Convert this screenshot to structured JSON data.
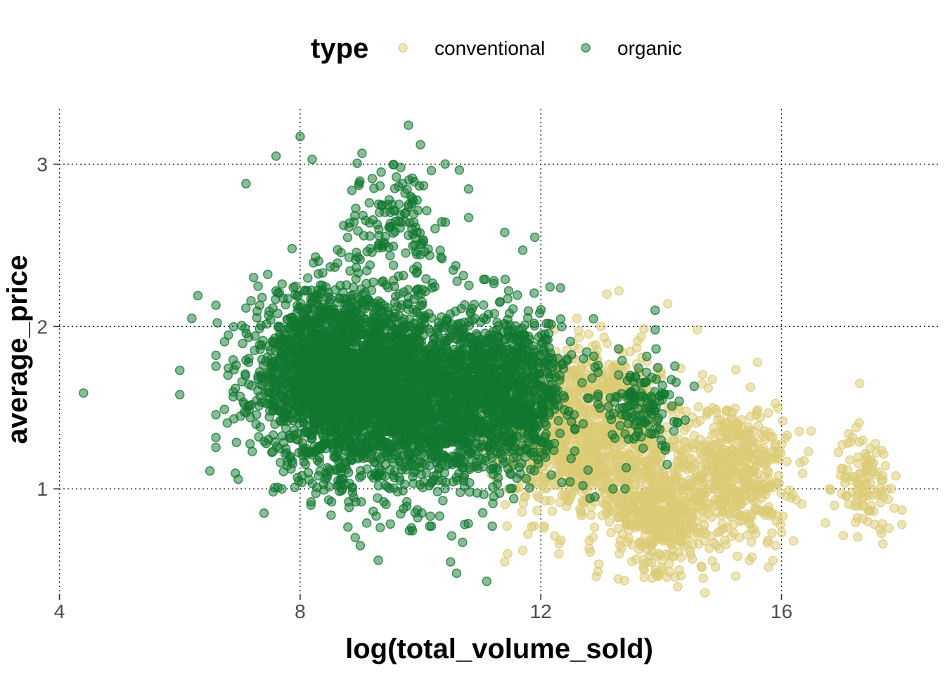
{
  "chart_data": {
    "type": "scatter",
    "title": "",
    "xlabel": "log(total_volume_sold)",
    "ylabel": "average_price",
    "xlim": [
      3.9,
      18.6
    ],
    "ylim": [
      0.36,
      3.34
    ],
    "x_ticks": [
      4,
      8,
      12,
      16
    ],
    "y_ticks": [
      1,
      2,
      3
    ],
    "grid": true,
    "legend": {
      "title": "type",
      "position": "top",
      "entries": [
        {
          "name": "conventional",
          "color": "#dccb75"
        },
        {
          "name": "organic",
          "color": "#12772f"
        }
      ]
    },
    "point_opacity": 0.5,
    "series": [
      {
        "name": "conventional",
        "color": "#dccb75",
        "clusters": [
          {
            "x_center": 12.3,
            "x_spread": 0.55,
            "y_center": 1.35,
            "y_spread": 0.25,
            "count": 520
          },
          {
            "x_center": 13.2,
            "x_spread": 0.55,
            "y_center": 1.3,
            "y_spread": 0.28,
            "count": 650
          },
          {
            "x_center": 14.0,
            "x_spread": 0.35,
            "y_center": 0.85,
            "y_spread": 0.17,
            "count": 420
          },
          {
            "x_center": 15.2,
            "x_spread": 0.45,
            "y_center": 1.1,
            "y_spread": 0.22,
            "count": 520
          },
          {
            "x_center": 17.4,
            "x_spread": 0.25,
            "y_center": 1.05,
            "y_spread": 0.15,
            "count": 110
          }
        ],
        "extra_points": [
          [
            13.1,
            2.2
          ],
          [
            13.3,
            2.22
          ],
          [
            12.6,
            2.05
          ],
          [
            14.6,
            1.98
          ],
          [
            13.0,
            2.0
          ],
          [
            17.3,
            1.65
          ],
          [
            15.5,
            0.75
          ],
          [
            15.9,
            0.65
          ],
          [
            14.7,
            0.45
          ],
          [
            18.0,
            0.78
          ],
          [
            18.0,
            0.87
          ],
          [
            11.4,
            0.55
          ],
          [
            11.7,
            0.62
          ],
          [
            12.3,
            0.6
          ],
          [
            14.3,
            0.5
          ],
          [
            13.9,
            0.48
          ],
          [
            15.3,
            0.7
          ],
          [
            16.2,
            0.68
          ],
          [
            14.0,
            1.72
          ],
          [
            15.6,
            1.78
          ],
          [
            16.8,
            1.0
          ],
          [
            17.9,
            1.08
          ]
        ]
      },
      {
        "name": "organic",
        "color": "#12772f",
        "clusters": [
          {
            "x_center": 8.4,
            "x_spread": 0.6,
            "y_center": 1.7,
            "y_spread": 0.26,
            "count": 1500
          },
          {
            "x_center": 9.4,
            "x_spread": 0.7,
            "y_center": 1.6,
            "y_spread": 0.3,
            "count": 1500
          },
          {
            "x_center": 10.6,
            "x_spread": 0.6,
            "y_center": 1.55,
            "y_spread": 0.26,
            "count": 900
          },
          {
            "x_center": 11.6,
            "x_spread": 0.45,
            "y_center": 1.6,
            "y_spread": 0.23,
            "count": 650
          },
          {
            "x_center": 9.6,
            "x_spread": 0.4,
            "y_center": 2.65,
            "y_spread": 0.18,
            "count": 130
          },
          {
            "x_center": 13.7,
            "x_spread": 0.3,
            "y_center": 1.55,
            "y_spread": 0.14,
            "count": 130
          }
        ],
        "extra_points": [
          [
            4.4,
            1.59
          ],
          [
            9.8,
            3.24
          ],
          [
            10.0,
            3.12
          ],
          [
            8.0,
            3.17
          ],
          [
            7.6,
            3.05
          ],
          [
            8.2,
            3.03
          ],
          [
            6.5,
            1.11
          ],
          [
            6.2,
            2.05
          ],
          [
            6.0,
            1.73
          ],
          [
            6.0,
            1.58
          ],
          [
            6.3,
            2.19
          ],
          [
            11.1,
            0.43
          ],
          [
            10.6,
            0.48
          ],
          [
            9.3,
            0.56
          ],
          [
            10.5,
            0.55
          ],
          [
            11.4,
            2.58
          ],
          [
            11.9,
            2.55
          ],
          [
            13.9,
            2.1
          ],
          [
            11.7,
            2.47
          ],
          [
            13.7,
            1.25
          ],
          [
            14.0,
            1.3
          ],
          [
            13.2,
            1.0
          ],
          [
            13.4,
            1.0
          ],
          [
            12.9,
            0.95
          ],
          [
            12.7,
            1.02
          ],
          [
            13.9,
            1.98
          ],
          [
            14.1,
            1.15
          ],
          [
            12.9,
            1.75
          ],
          [
            14.3,
            1.54
          ],
          [
            7.1,
            2.88
          ],
          [
            6.8,
            1.7
          ],
          [
            7.4,
            0.85
          ],
          [
            10.7,
            0.67
          ],
          [
            9.0,
            0.65
          ]
        ]
      }
    ]
  }
}
